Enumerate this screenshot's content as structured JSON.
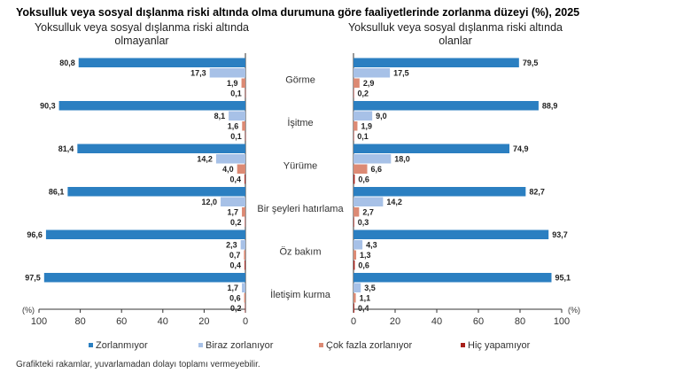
{
  "chart_data": [
    {
      "type": "bar",
      "orientation": "horizontal",
      "title": "Yoksulluk veya sosyal dışlanma riski altında olma durumuna göre faaliyetlerinde zorlanma düzeyi (%), 2025",
      "subtitle": "Yoksulluk veya sosyal dışlanma riski altında olmayanlar",
      "subtitle_lines": [
        "Yoksulluk veya sosyal dışlanma riski altında",
        "olmayanlar"
      ],
      "unit": "(%)",
      "xlim": [
        100,
        0
      ],
      "xticks": [
        "100",
        "80",
        "60",
        "40",
        "20",
        "0"
      ],
      "categories": [
        "Görme",
        "İşitme",
        "Yürüme",
        "Bir şeyleri hatırlama",
        "Öz bakım",
        "İletişim kurma"
      ],
      "series": [
        {
          "name": "Zorlanmıyor",
          "color": "#2b7fc1",
          "values": [
            80.8,
            90.3,
            81.4,
            86.1,
            96.6,
            97.5
          ],
          "labels": [
            "80,8",
            "90,3",
            "81,4",
            "86,1",
            "96,6",
            "97,5"
          ]
        },
        {
          "name": "Biraz zorlanıyor",
          "color": "#a7c1e7",
          "values": [
            17.3,
            8.1,
            14.2,
            12.0,
            2.3,
            1.7
          ],
          "labels": [
            "17,3",
            "8,1",
            "14,2",
            "12,0",
            "2,3",
            "1,7"
          ]
        },
        {
          "name": "Çok fazla zorlanıyor",
          "color": "#dc8a74",
          "values": [
            1.9,
            1.6,
            4.0,
            1.7,
            0.7,
            0.6
          ],
          "labels": [
            "1,9",
            "1,6",
            "4,0",
            "1,7",
            "0,7",
            "0,6"
          ]
        },
        {
          "name": "Hiç yapamıyor",
          "color": "#a8201a",
          "values": [
            0.1,
            0.1,
            0.4,
            0.2,
            0.4,
            0.2
          ],
          "labels": [
            "0,1",
            "0,1",
            "0,4",
            "0,2",
            "0,4",
            "0,2"
          ]
        }
      ]
    },
    {
      "type": "bar",
      "orientation": "horizontal",
      "subtitle": "Yoksulluk veya sosyal dışlanma riski altında olanlar",
      "subtitle_lines": [
        "Yoksulluk veya sosyal dışlanma riski altında",
        "olanlar"
      ],
      "unit": "(%)",
      "xlim": [
        0,
        100
      ],
      "xticks": [
        "0",
        "20",
        "40",
        "60",
        "80",
        "100"
      ],
      "categories": [
        "Görme",
        "İşitme",
        "Yürüme",
        "Bir şeyleri hatırlama",
        "Öz bakım",
        "İletişim kurma"
      ],
      "series": [
        {
          "name": "Zorlanmıyor",
          "color": "#2b7fc1",
          "values": [
            79.5,
            88.9,
            74.9,
            82.7,
            93.7,
            95.1
          ],
          "labels": [
            "79,5",
            "88,9",
            "74,9",
            "82,7",
            "93,7",
            "95,1"
          ]
        },
        {
          "name": "Biraz zorlanıyor",
          "color": "#a7c1e7",
          "values": [
            17.5,
            9.0,
            18.0,
            14.2,
            4.3,
            3.5
          ],
          "labels": [
            "17,5",
            "9,0",
            "18,0",
            "14,2",
            "4,3",
            "3,5"
          ]
        },
        {
          "name": "Çok fazla zorlanıyor",
          "color": "#dc8a74",
          "values": [
            2.9,
            1.9,
            6.6,
            2.7,
            1.3,
            1.1
          ],
          "labels": [
            "2,9",
            "1,9",
            "6,6",
            "2,7",
            "1,3",
            "1,1"
          ]
        },
        {
          "name": "Hiç yapamıyor",
          "color": "#a8201a",
          "values": [
            0.2,
            0.1,
            0.6,
            0.3,
            0.6,
            0.4
          ],
          "labels": [
            "0,2",
            "0,1",
            "0,6",
            "0,3",
            "0,6",
            "0,4"
          ]
        }
      ]
    }
  ],
  "legend": [
    "Zorlanmıyor",
    "Biraz zorlanıyor",
    "Çok fazla zorlanıyor",
    "Hiç yapamıyor"
  ],
  "legend_placement": "bottom",
  "footnote": "Grafikteki rakamlar, yuvarlamadan dolayı toplamı vermeyebilir."
}
